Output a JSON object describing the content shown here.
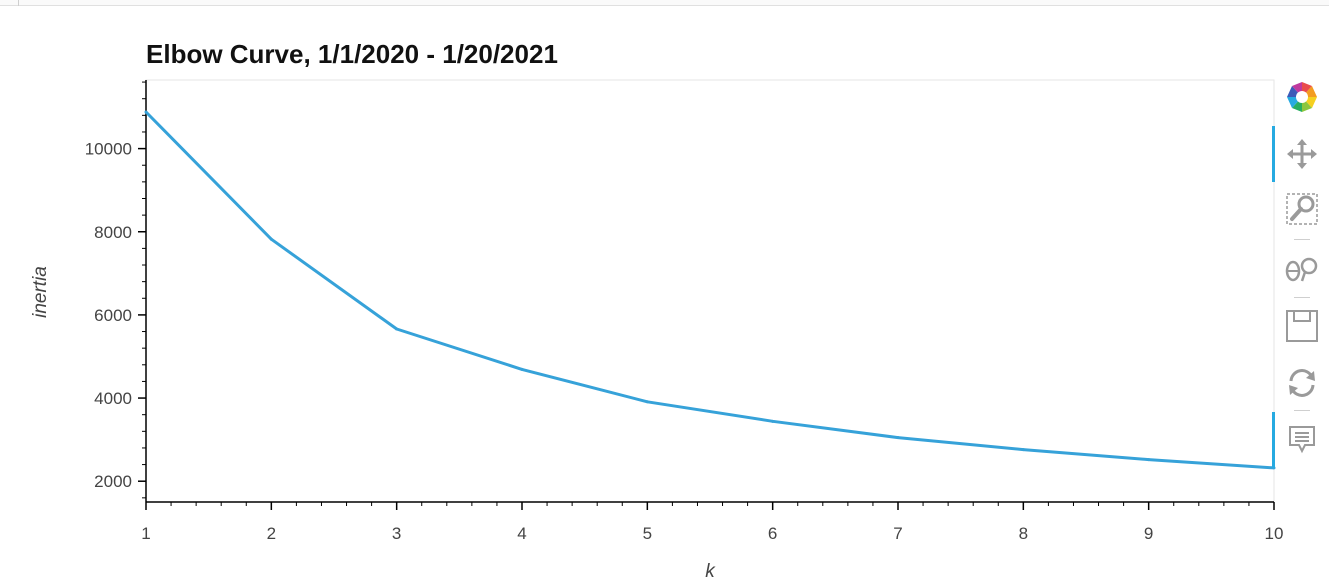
{
  "chart_data": {
    "type": "line",
    "title": "Elbow Curve, 1/1/2020 - 1/20/2021",
    "xlabel": "k",
    "ylabel": "inertia",
    "x": [
      1,
      2,
      3,
      4,
      5,
      6,
      7,
      8,
      9,
      10
    ],
    "series": [
      {
        "values": [
          10880,
          7820,
          5660,
          4690,
          3910,
          3440,
          3050,
          2760,
          2520,
          2320
        ]
      }
    ],
    "xlim": [
      1,
      10
    ],
    "ylim": [
      1500,
      11650
    ],
    "x_ticks": [
      1,
      2,
      3,
      4,
      5,
      6,
      7,
      8,
      9,
      10
    ],
    "y_ticks": [
      2000,
      4000,
      6000,
      8000,
      10000
    ],
    "grid": false,
    "line_color": "#36a2d9"
  },
  "toolbar": {
    "tools": [
      {
        "name": "bokeh-logo-icon"
      },
      {
        "name": "pan-icon"
      },
      {
        "name": "box-zoom-icon"
      },
      {
        "name": "wheel-zoom-icon"
      },
      {
        "name": "save-icon"
      },
      {
        "name": "reset-icon"
      },
      {
        "name": "hover-icon"
      }
    ]
  }
}
